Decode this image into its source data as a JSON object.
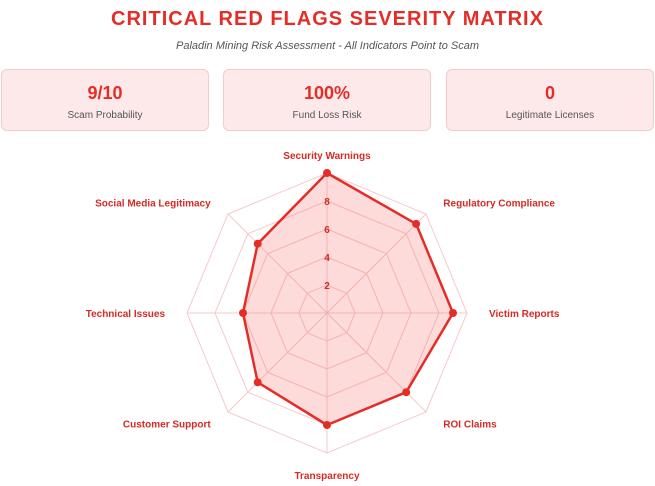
{
  "header": {
    "title": "CRITICAL RED FLAGS SEVERITY MATRIX",
    "subtitle": "Paladin Mining Risk Assessment - All Indicators Point to Scam"
  },
  "stats": [
    {
      "value": "9/10",
      "label": "Scam Probability"
    },
    {
      "value": "100%",
      "label": "Fund Loss Risk"
    },
    {
      "value": "0",
      "label": "Legitimate Licenses"
    }
  ],
  "colors": {
    "accent": "#e52d27",
    "fill": "rgba(245,90,85,0.22)",
    "grid": "#f6c9cb",
    "card_bg": "#fde9ea"
  },
  "chart_data": {
    "type": "radar",
    "categories": [
      "Security Warnings",
      "Regulatory Compliance",
      "Victim Reports",
      "ROI Claims",
      "Transparency",
      "Customer Support",
      "Technical Issues",
      "Social Media Legitimacy"
    ],
    "series": [
      {
        "values": [
          10,
          9,
          9,
          8,
          8,
          7,
          6,
          7
        ]
      }
    ],
    "range": [
      0,
      10
    ],
    "ticks": [
      2,
      4,
      6,
      8
    ],
    "grid": true
  }
}
